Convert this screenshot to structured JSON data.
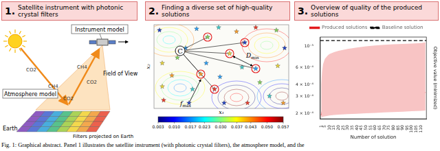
{
  "panels": [
    {
      "number": "1.",
      "title": "Satellite instrument with photonic crystal filters"
    },
    {
      "number": "2.",
      "title": "Finding a diverse set of high-quality solutions"
    },
    {
      "number": "3.",
      "title": "Overview of quality of the produced solutions"
    }
  ],
  "diagram": {
    "instrument": "Instrument model",
    "field_of_view": "Field of View",
    "atmosphere": "Atmosphere model",
    "filters": "Filters projected on Earth",
    "earth": "Earth",
    "gases": [
      "CO2",
      "CH4",
      "CO2",
      "CH4",
      "CO2"
    ]
  },
  "search": {
    "x_label": "x₁",
    "y_label": "x₂",
    "center": "C",
    "d_min": {
      "symbol": "D",
      "subscript": "min"
    },
    "f_max": {
      "symbol": "f",
      "subscript": "max"
    },
    "colorbar": {
      "range": [
        0.003,
        0.057
      ],
      "ticks": [
        0.003,
        {
          "value": 0.01,
          "label": "0.010"
        },
        0.017,
        0.023,
        {
          "value": 0.03,
          "label": "0.030"
        },
        0.037,
        0.043,
        {
          "value": 0.05,
          "label": "0.050"
        },
        0.057
      ]
    }
  },
  "caption": "Fig. 1: Graphical abstract. Panel 1 illustrates the satellite instrument (with photonic crystal filters), the atmosphere model, and the",
  "chart_data": {
    "type": "line",
    "xlabel": "Number of solution",
    "ylabel": "Objective value (minimized)",
    "xlim": [
      0,
      116
    ],
    "xticks": [
      1,
      5,
      10,
      15,
      20,
      25,
      30,
      35,
      40,
      45,
      50,
      55,
      60,
      65,
      70,
      75,
      80,
      85,
      90,
      95,
      100,
      105,
      110
    ],
    "ylim": [
      0.000175,
      0.00125
    ],
    "yticks": [
      {
        "value": 0.0002,
        "label": "2 × 10⁻⁴"
      },
      {
        "value": 0.0003,
        "label": "3 × 10⁻⁴"
      },
      {
        "value": 0.0004,
        "label": "4 × 10⁻⁴"
      },
      {
        "value": 0.0006,
        "label": "6 × 10⁻⁴"
      },
      {
        "value": 0.001,
        "label": "10⁻³"
      }
    ],
    "log": "y",
    "grid": false,
    "legend": "top",
    "series": [
      {
        "name": "Produced solutions",
        "color": "#e31a1c",
        "line_style": "solid",
        "x": [
          1,
          2,
          3,
          4,
          5,
          6,
          7,
          8,
          9,
          10,
          11,
          12,
          13,
          14,
          15,
          16,
          17,
          18,
          19,
          20,
          21,
          22,
          23,
          24,
          25,
          26,
          27,
          28,
          29,
          30,
          31,
          32,
          33,
          34,
          35,
          36,
          37,
          38,
          39,
          40,
          41,
          42,
          43,
          44,
          45,
          46,
          47,
          48,
          49,
          50,
          51,
          52,
          53,
          54,
          55,
          56,
          57,
          58,
          59,
          60,
          61,
          62,
          63,
          64,
          65,
          66,
          67,
          68,
          69,
          70,
          71,
          72,
          73,
          74,
          75,
          76,
          77,
          78,
          79,
          80,
          81,
          82,
          83,
          84,
          85,
          86,
          87,
          88,
          89,
          90,
          91,
          92,
          93,
          94,
          95,
          96,
          97,
          98,
          99,
          100,
          101,
          102,
          103,
          104,
          105,
          106,
          107,
          108,
          109,
          110,
          111,
          112,
          113,
          114,
          115
        ],
        "values": [
          0.00019,
          0.00021,
          0.000222,
          0.000228,
          0.000232,
          0.000235,
          0.000238,
          0.00024,
          0.000242,
          0.000244,
          0.000245,
          0.000247,
          0.000248,
          0.00025,
          0.000251,
          0.000252,
          0.000253,
          0.000255,
          0.000256,
          0.000257,
          0.000258,
          0.000259,
          0.00026,
          0.000261,
          0.000262,
          0.000262,
          0.000263,
          0.000264,
          0.000265,
          0.000266,
          0.000266,
          0.000267,
          0.000268,
          0.000268,
          0.000269,
          0.00027,
          0.00027,
          0.000271,
          0.000272,
          0.000272,
          0.000273,
          0.000273,
          0.000274,
          0.000275,
          0.000275,
          0.000276,
          0.000276,
          0.000277,
          0.000278,
          0.000278,
          0.000279,
          0.000279,
          0.00028,
          0.00028,
          0.000281,
          0.000281,
          0.000282,
          0.000283,
          0.000283,
          0.000284,
          0.000284,
          0.000285,
          0.000285,
          0.000286,
          0.000286,
          0.000287,
          0.000288,
          0.000288,
          0.000289,
          0.000289,
          0.00029,
          0.00029,
          0.000291,
          0.000292,
          0.000292,
          0.000293,
          0.000293,
          0.000294,
          0.000295,
          0.000295,
          0.000296,
          0.000296,
          0.000297,
          0.000298,
          0.000298,
          0.000299,
          0.0003,
          0.0003,
          0.000301,
          0.000302,
          0.000302,
          0.000303,
          0.000304,
          0.000304,
          0.000305,
          0.000306,
          0.000306,
          0.000307,
          0.000308,
          0.000309,
          0.00031,
          0.00031,
          0.000311,
          0.000312,
          0.000313,
          0.000314,
          0.000315,
          0.000316,
          0.000317,
          0.000318,
          0.00032,
          0.000322,
          0.000324,
          0.000327,
          0.000332
        ]
      },
      {
        "name": "Baseline solution",
        "color": "#000000",
        "line_style": "dashed",
        "x": [
          0,
          116
        ],
        "values": [
          0.00115,
          0.00115
        ]
      }
    ],
    "band": {
      "color": "#f8c4c4",
      "x": [
        1,
        2,
        3,
        5,
        8,
        10,
        15,
        20,
        30,
        40,
        50,
        60,
        70,
        80,
        90,
        100,
        110,
        115
      ],
      "lower": [
        0.00018,
        0.000182,
        0.000184,
        0.000186,
        0.000188,
        0.00019,
        0.000192,
        0.000194,
        0.000196,
        0.000198,
        0.0002,
        0.000202,
        0.000204,
        0.000206,
        0.000208,
        0.00021,
        0.000212,
        0.000214
      ],
      "upper": [
        0.0004,
        0.00055,
        0.00065,
        0.00074,
        0.0008,
        0.00083,
        0.00087,
        0.0009,
        0.00094,
        0.00097,
        0.001,
        0.00102,
        0.00104,
        0.00105,
        0.00106,
        0.00107,
        0.00108,
        0.0011
      ]
    }
  }
}
